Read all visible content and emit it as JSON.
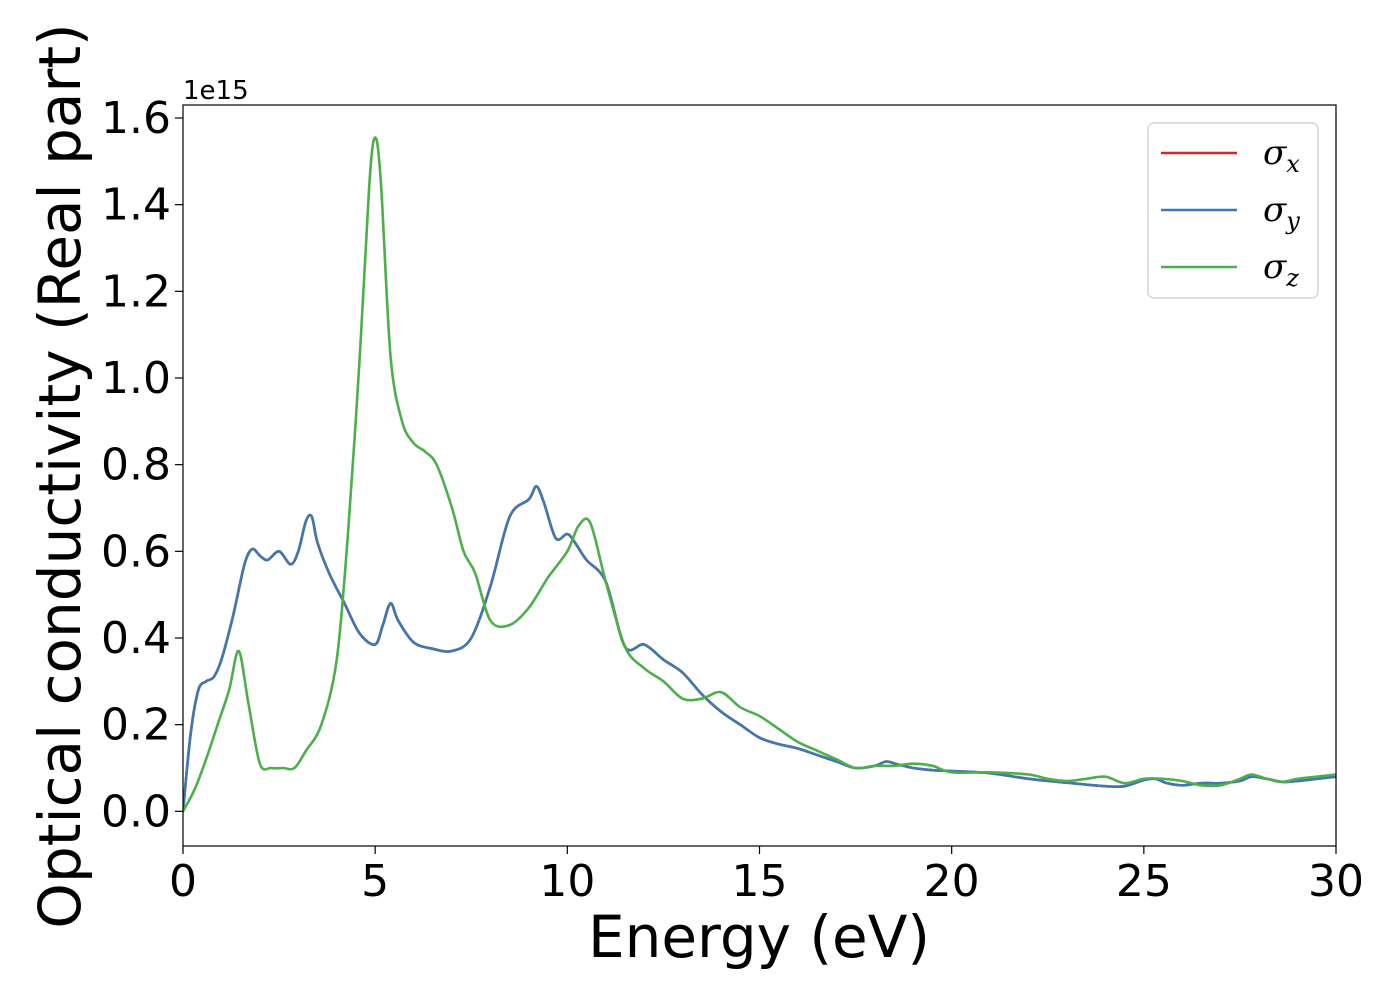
{
  "chart_data": {
    "type": "line",
    "title": "",
    "xlabel": "Energy (eV)",
    "ylabel": "Optical conductivity (Real part)",
    "y_scale_label": "1e15",
    "y_scale_factor": 1000000000000000.0,
    "xlim": [
      0,
      30
    ],
    "ylim": [
      -0.08,
      1.63
    ],
    "xticks": [
      0,
      5,
      10,
      15,
      20,
      25,
      30
    ],
    "xtick_labels": [
      "0",
      "5",
      "10",
      "15",
      "20",
      "25",
      "30"
    ],
    "yticks": [
      0.0,
      0.2,
      0.4,
      0.6,
      0.8,
      1.0,
      1.2,
      1.4,
      1.6
    ],
    "ytick_labels": [
      "0.0",
      "0.2",
      "0.4",
      "0.6",
      "0.8",
      "1.0",
      "1.2",
      "1.4",
      "1.6"
    ],
    "grid": false,
    "legend_position": "top-right",
    "series": [
      {
        "name": "σ",
        "subscript": "x",
        "color": "#d62728",
        "x": [
          0,
          0.2,
          0.4,
          0.6,
          0.8,
          1.0,
          1.3,
          1.6,
          1.8,
          2.0,
          2.2,
          2.5,
          2.8,
          3.0,
          3.2,
          3.35,
          3.5,
          3.8,
          4.2,
          4.6,
          5.0,
          5.2,
          5.4,
          5.6,
          6.0,
          6.5,
          7.0,
          7.5,
          8.0,
          8.5,
          9.0,
          9.2,
          9.4,
          9.7,
          10.0,
          10.2,
          10.5,
          11.0,
          11.5,
          12.0,
          12.5,
          13.0,
          13.5,
          14.0,
          14.5,
          15.0,
          15.5,
          16.0,
          16.5,
          17.0,
          17.5,
          18.0,
          18.3,
          18.6,
          19.0,
          19.5,
          20.0,
          21.0,
          22.0,
          23.0,
          24.0,
          24.5,
          25.0,
          25.3,
          25.6,
          26.0,
          26.5,
          27.0,
          27.5,
          27.8,
          28.2,
          28.6,
          29.0,
          29.5,
          30.0
        ],
        "values": [
          0.0,
          0.18,
          0.28,
          0.3,
          0.31,
          0.35,
          0.45,
          0.57,
          0.605,
          0.59,
          0.58,
          0.6,
          0.57,
          0.6,
          0.67,
          0.68,
          0.62,
          0.55,
          0.48,
          0.41,
          0.385,
          0.43,
          0.48,
          0.44,
          0.39,
          0.375,
          0.37,
          0.4,
          0.52,
          0.68,
          0.72,
          0.75,
          0.71,
          0.63,
          0.64,
          0.62,
          0.58,
          0.53,
          0.38,
          0.385,
          0.35,
          0.32,
          0.27,
          0.23,
          0.2,
          0.17,
          0.155,
          0.145,
          0.13,
          0.115,
          0.1,
          0.105,
          0.115,
          0.108,
          0.1,
          0.095,
          0.093,
          0.088,
          0.075,
          0.066,
          0.058,
          0.058,
          0.072,
          0.075,
          0.065,
          0.06,
          0.065,
          0.065,
          0.07,
          0.08,
          0.075,
          0.068,
          0.07,
          0.075,
          0.08
        ]
      },
      {
        "name": "σ",
        "subscript": "y",
        "color": "#3d78b2",
        "x": [
          0,
          0.2,
          0.4,
          0.6,
          0.8,
          1.0,
          1.3,
          1.6,
          1.8,
          2.0,
          2.2,
          2.5,
          2.8,
          3.0,
          3.2,
          3.35,
          3.5,
          3.8,
          4.2,
          4.6,
          5.0,
          5.2,
          5.4,
          5.6,
          6.0,
          6.5,
          7.0,
          7.5,
          8.0,
          8.5,
          9.0,
          9.2,
          9.4,
          9.7,
          10.0,
          10.2,
          10.5,
          11.0,
          11.5,
          12.0,
          12.5,
          13.0,
          13.5,
          14.0,
          14.5,
          15.0,
          15.5,
          16.0,
          16.5,
          17.0,
          17.5,
          18.0,
          18.3,
          18.6,
          19.0,
          19.5,
          20.0,
          21.0,
          22.0,
          23.0,
          24.0,
          24.5,
          25.0,
          25.3,
          25.6,
          26.0,
          26.5,
          27.0,
          27.5,
          27.8,
          28.2,
          28.6,
          29.0,
          29.5,
          30.0
        ],
        "values": [
          0.0,
          0.18,
          0.28,
          0.3,
          0.31,
          0.35,
          0.45,
          0.57,
          0.605,
          0.59,
          0.58,
          0.6,
          0.57,
          0.6,
          0.67,
          0.68,
          0.62,
          0.55,
          0.48,
          0.41,
          0.385,
          0.43,
          0.48,
          0.44,
          0.39,
          0.375,
          0.37,
          0.4,
          0.52,
          0.68,
          0.72,
          0.75,
          0.71,
          0.63,
          0.64,
          0.62,
          0.58,
          0.53,
          0.38,
          0.385,
          0.35,
          0.32,
          0.27,
          0.23,
          0.2,
          0.17,
          0.155,
          0.145,
          0.13,
          0.115,
          0.1,
          0.105,
          0.115,
          0.108,
          0.1,
          0.095,
          0.093,
          0.088,
          0.075,
          0.066,
          0.058,
          0.058,
          0.072,
          0.075,
          0.065,
          0.06,
          0.065,
          0.065,
          0.07,
          0.08,
          0.075,
          0.068,
          0.07,
          0.075,
          0.08
        ]
      },
      {
        "name": "σ",
        "subscript": "z",
        "color": "#4daf4a",
        "x": [
          0,
          0.3,
          0.6,
          0.9,
          1.2,
          1.45,
          1.7,
          2.0,
          2.3,
          2.6,
          2.9,
          3.2,
          3.6,
          4.0,
          4.3,
          4.6,
          4.85,
          5.0,
          5.15,
          5.4,
          5.7,
          6.0,
          6.3,
          6.6,
          7.0,
          7.3,
          7.6,
          8.0,
          8.5,
          9.0,
          9.5,
          10.0,
          10.3,
          10.6,
          11.0,
          11.5,
          12.0,
          12.5,
          13.0,
          13.5,
          14.0,
          14.5,
          15.0,
          15.5,
          16.0,
          16.5,
          17.0,
          17.5,
          18.0,
          18.5,
          19.0,
          19.5,
          20.0,
          21.0,
          22.0,
          22.5,
          23.0,
          23.5,
          24.0,
          24.5,
          25.0,
          25.5,
          26.0,
          26.5,
          27.0,
          27.5,
          27.8,
          28.2,
          28.6,
          29.0,
          29.5,
          30.0
        ],
        "values": [
          0.0,
          0.05,
          0.12,
          0.2,
          0.28,
          0.37,
          0.25,
          0.11,
          0.1,
          0.1,
          0.1,
          0.14,
          0.2,
          0.35,
          0.65,
          1.05,
          1.45,
          1.555,
          1.45,
          1.05,
          0.9,
          0.85,
          0.83,
          0.8,
          0.7,
          0.6,
          0.55,
          0.44,
          0.43,
          0.47,
          0.54,
          0.6,
          0.66,
          0.665,
          0.53,
          0.38,
          0.33,
          0.3,
          0.26,
          0.26,
          0.275,
          0.24,
          0.22,
          0.19,
          0.16,
          0.14,
          0.12,
          0.1,
          0.105,
          0.105,
          0.11,
          0.105,
          0.09,
          0.09,
          0.085,
          0.075,
          0.07,
          0.075,
          0.08,
          0.065,
          0.075,
          0.075,
          0.07,
          0.06,
          0.06,
          0.075,
          0.085,
          0.075,
          0.068,
          0.075,
          0.08,
          0.085
        ]
      }
    ]
  }
}
